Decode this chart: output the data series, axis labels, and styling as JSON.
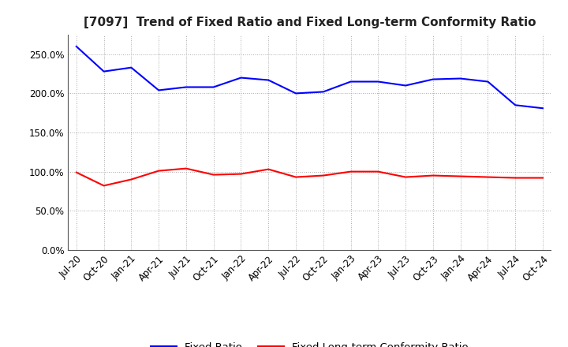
{
  "title": "[7097]  Trend of Fixed Ratio and Fixed Long-term Conformity Ratio",
  "x_labels": [
    "Jul-20",
    "Oct-20",
    "Jan-21",
    "Apr-21",
    "Jul-21",
    "Oct-21",
    "Jan-22",
    "Apr-22",
    "Jul-22",
    "Oct-22",
    "Jan-23",
    "Apr-23",
    "Jul-23",
    "Oct-23",
    "Jan-24",
    "Apr-24",
    "Jul-24",
    "Oct-24"
  ],
  "fixed_ratio": [
    260,
    228,
    233,
    204,
    208,
    208,
    220,
    217,
    200,
    202,
    215,
    215,
    210,
    218,
    219,
    215,
    185,
    181
  ],
  "fixed_lt_ratio": [
    99,
    82,
    90,
    101,
    104,
    96,
    97,
    103,
    93,
    95,
    100,
    100,
    93,
    95,
    94,
    93,
    92,
    92
  ],
  "blue_color": "#0000FF",
  "red_color": "#FF0000",
  "background_color": "#FFFFFF",
  "grid_color": "#AAAAAA",
  "ylim": [
    0,
    275
  ],
  "yticks": [
    0,
    50,
    100,
    150,
    200,
    250
  ],
  "legend_labels": [
    "Fixed Ratio",
    "Fixed Long-term Conformity Ratio"
  ],
  "title_fontsize": 11,
  "tick_fontsize": 8.5,
  "legend_fontsize": 9.5
}
